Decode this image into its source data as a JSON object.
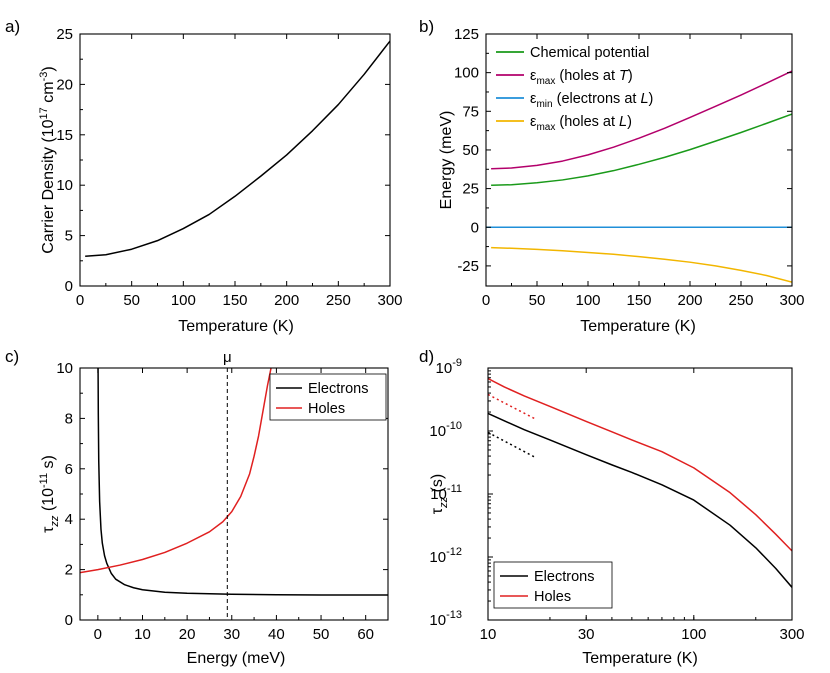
{
  "figure": {
    "panels": [
      {
        "label": "a)"
      },
      {
        "label": "b)"
      },
      {
        "label": "c)"
      },
      {
        "label": "d)"
      }
    ]
  },
  "chart_data": [
    {
      "id": "a",
      "type": "line",
      "title": "",
      "xlabel": "Temperature (K)",
      "ylabel": "Carrier Density (10¹⁷ cm⁻³)",
      "xlim": [
        0,
        300
      ],
      "ylim": [
        0,
        25
      ],
      "xticks": [
        0,
        50,
        100,
        150,
        200,
        250,
        300
      ],
      "yticks": [
        0,
        5,
        10,
        15,
        20,
        25
      ],
      "series": [
        {
          "name": "Carrier density",
          "color": "#000000",
          "x": [
            5,
            25,
            50,
            75,
            100,
            125,
            150,
            175,
            200,
            225,
            250,
            275,
            300
          ],
          "y": [
            2.95,
            3.1,
            3.65,
            4.5,
            5.7,
            7.1,
            8.9,
            10.9,
            13.0,
            15.4,
            18.0,
            21.0,
            24.3
          ]
        }
      ]
    },
    {
      "id": "b",
      "type": "line",
      "title": "",
      "xlabel": "Temperature (K)",
      "ylabel": "Energy (meV)",
      "xlim": [
        0,
        300
      ],
      "ylim": [
        -38,
        125
      ],
      "xticks": [
        0,
        50,
        100,
        150,
        200,
        250,
        300
      ],
      "yticks": [
        -25,
        0,
        25,
        50,
        75,
        100,
        125
      ],
      "legend_position": "top-left",
      "series": [
        {
          "name": "Chemical potential",
          "legend_text": "Chemical potential",
          "color": "#1a9a1a",
          "x": [
            5,
            25,
            50,
            75,
            100,
            125,
            150,
            175,
            200,
            225,
            250,
            275,
            300
          ],
          "y": [
            27.2,
            27.5,
            28.8,
            30.6,
            33.2,
            36.6,
            40.7,
            45.2,
            50.2,
            55.7,
            61.3,
            67.2,
            73.2
          ]
        },
        {
          "name": "εmax (holes at T)",
          "legend_symbol": "ε",
          "legend_sub": "max",
          "legend_text": " (holes at ",
          "legend_italic": "T",
          "legend_end": ")",
          "color": "#b3006b",
          "x": [
            5,
            25,
            50,
            75,
            100,
            125,
            150,
            175,
            200,
            225,
            250,
            275,
            300
          ],
          "y": [
            37.8,
            38.3,
            40.0,
            42.8,
            46.8,
            51.8,
            57.6,
            64.0,
            71.0,
            78.2,
            85.5,
            93.2,
            101.0
          ]
        },
        {
          "name": "εmin (electrons at L)",
          "legend_symbol": "ε",
          "legend_sub": "min",
          "legend_text": " (electrons at ",
          "legend_italic": "L",
          "legend_end": ")",
          "color": "#1f8fd8",
          "x": [
            0,
            300
          ],
          "y": [
            0,
            0
          ]
        },
        {
          "name": "εmax (holes at L)",
          "legend_symbol": "ε",
          "legend_sub": "max",
          "legend_text": " (holes at ",
          "legend_italic": "L",
          "legend_end": ")",
          "color": "#f2b600",
          "x": [
            5,
            25,
            50,
            75,
            100,
            125,
            150,
            175,
            200,
            225,
            250,
            275,
            300
          ],
          "y": [
            -13.2,
            -13.6,
            -14.3,
            -15.2,
            -16.3,
            -17.5,
            -19.0,
            -20.7,
            -22.6,
            -25.0,
            -27.9,
            -31.2,
            -35.5
          ]
        }
      ]
    },
    {
      "id": "c",
      "type": "line",
      "title": "",
      "xlabel": "Energy (meV)",
      "ylabel": "τzz (10⁻¹¹ s)",
      "xlim": [
        -4,
        65
      ],
      "ylim": [
        0,
        10
      ],
      "xticks": [
        0,
        10,
        20,
        30,
        40,
        50,
        60
      ],
      "yticks": [
        0,
        2,
        4,
        6,
        8,
        10
      ],
      "annotation": {
        "text": "μ",
        "x": 29
      },
      "legend_position": "top-right",
      "series": [
        {
          "name": "Electrons",
          "color": "#000000",
          "x": [
            0.05,
            0.1,
            0.2,
            0.4,
            0.7,
            1.0,
            1.5,
            2,
            3,
            4,
            6,
            8,
            10,
            15,
            20,
            30,
            40,
            50,
            60,
            65
          ],
          "y": [
            10.0,
            8.2,
            6.3,
            4.7,
            3.6,
            3.05,
            2.55,
            2.25,
            1.85,
            1.62,
            1.4,
            1.28,
            1.2,
            1.1,
            1.06,
            1.02,
            1.0,
            0.99,
            0.99,
            0.99
          ]
        },
        {
          "name": "Holes",
          "color": "#e02020",
          "x": [
            -4,
            0,
            5,
            10,
            15,
            20,
            25,
            28,
            30,
            32,
            34,
            35,
            36,
            37,
            38,
            38.8
          ],
          "y": [
            1.88,
            2.0,
            2.18,
            2.4,
            2.68,
            3.05,
            3.5,
            3.9,
            4.3,
            4.9,
            5.8,
            6.5,
            7.3,
            8.3,
            9.3,
            10.0
          ]
        }
      ]
    },
    {
      "id": "d",
      "type": "line",
      "title": "",
      "xlabel": "Temperature (K)",
      "ylabel": "τzz (s)",
      "xscale": "log",
      "yscale": "log",
      "xlim": [
        10,
        300
      ],
      "ylim": [
        1e-13,
        1e-09
      ],
      "xticks": [
        10,
        30,
        100,
        300
      ],
      "yticks_exp": [
        -13,
        -12,
        -11,
        -10,
        -9
      ],
      "legend_position": "bottom-left",
      "series": [
        {
          "name": "Electrons",
          "color": "#000000",
          "x": [
            10,
            12,
            15,
            20,
            30,
            40,
            50,
            70,
            100,
            150,
            200,
            250,
            300
          ],
          "y": [
            1.9e-10,
            1.45e-10,
            1.05e-10,
            7.2e-11,
            4.2e-11,
            2.9e-11,
            2.2e-11,
            1.4e-11,
            8e-12,
            3.2e-12,
            1.4e-12,
            6.6e-13,
            3.3e-13
          ]
        },
        {
          "name": "Holes",
          "color": "#e02020",
          "x": [
            10,
            12,
            15,
            20,
            30,
            40,
            50,
            70,
            100,
            150,
            200,
            250,
            300
          ],
          "y": [
            6.8e-10,
            5e-10,
            3.6e-10,
            2.45e-10,
            1.42e-10,
            9.7e-11,
            7.2e-11,
            4.7e-11,
            2.6e-11,
            1.05e-11,
            4.7e-12,
            2.3e-12,
            1.25e-12
          ]
        },
        {
          "name": "Electrons (dotted)",
          "color": "#000000",
          "dash": "dotted",
          "x": [
            10,
            17
          ],
          "y": [
            9.5e-11,
            3.8e-11
          ]
        },
        {
          "name": "Holes (dotted)",
          "color": "#e02020",
          "dash": "dotted",
          "x": [
            10,
            17
          ],
          "y": [
            3.8e-10,
            1.55e-10
          ]
        }
      ]
    }
  ]
}
